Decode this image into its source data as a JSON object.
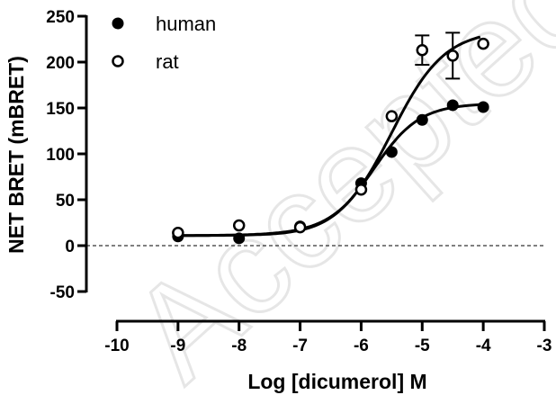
{
  "chart_data": {
    "type": "scatter",
    "xlabel": "Log [dicumerol] M",
    "ylabel": "NET BRET (mBRET)",
    "xlim": [
      -10,
      -3
    ],
    "ylim": [
      -50,
      250
    ],
    "xticks": [
      "-10",
      "-9",
      "-8",
      "-7",
      "-6",
      "-5",
      "-4",
      "-3"
    ],
    "yticks": [
      "-50",
      "0",
      "50",
      "100",
      "150",
      "200",
      "250"
    ],
    "reference_line": {
      "y": 0,
      "style": "dashed"
    },
    "legend_position": "top-left",
    "series": [
      {
        "name": "human",
        "marker": "filled-circle",
        "x": [
          -9,
          -8,
          -7,
          -6,
          -5.5,
          -5,
          -4.5,
          -4
        ],
        "y": [
          10,
          8,
          21,
          68,
          102,
          137,
          153,
          151
        ],
        "fit": {
          "bottom": 11,
          "top": 155,
          "logEC50": -5.8,
          "hill": 1.15
        }
      },
      {
        "name": "rat",
        "marker": "open-circle",
        "x": [
          -9,
          -8,
          -7,
          -6,
          -5.5,
          -5,
          -4.5,
          -4
        ],
        "y": [
          14,
          22,
          20,
          61,
          141,
          213,
          207,
          220
        ],
        "error": [
          0,
          0,
          0,
          0,
          0,
          16,
          25,
          0
        ],
        "fit": {
          "bottom": 11,
          "top": 235,
          "logEC50": -5.5,
          "hill": 1.0
        }
      }
    ]
  },
  "watermark": "Accepted"
}
